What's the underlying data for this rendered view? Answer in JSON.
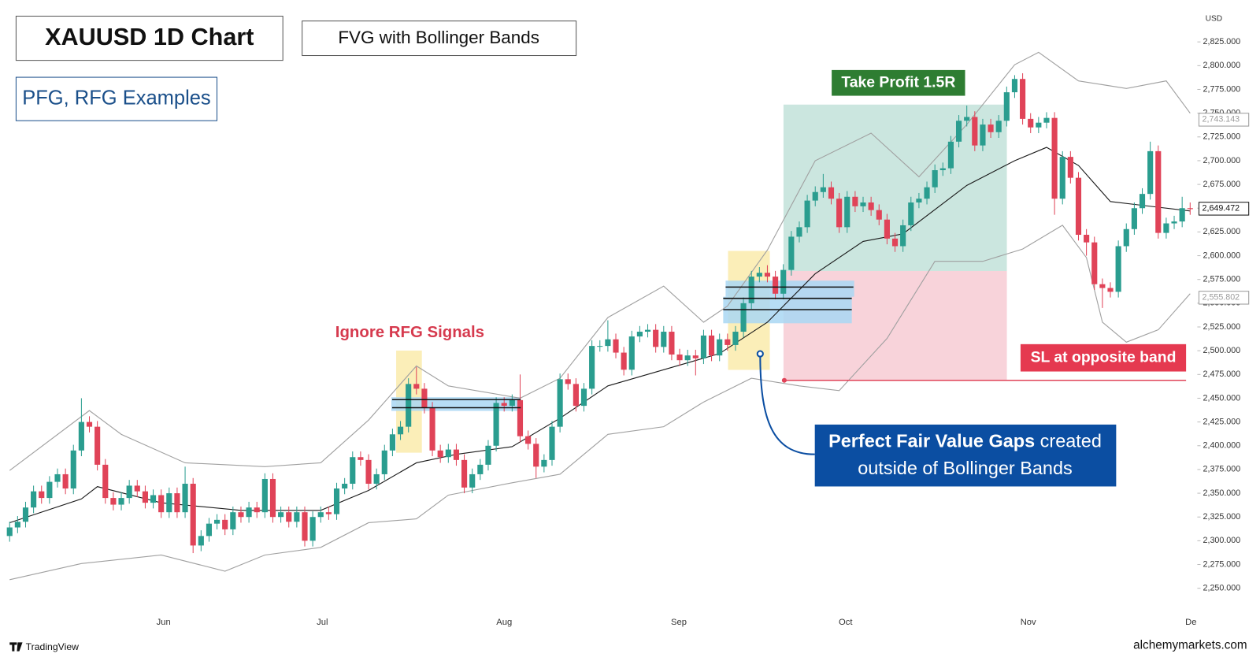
{
  "header": {
    "title": "XAUUSD 1D Chart",
    "subtitle": "FVG with Bollinger Bands",
    "tag": "PFG, RFG Examples"
  },
  "chart_data": {
    "type": "candlestick",
    "up_color": "#2a9d8f",
    "down_color": "#e04358",
    "open": [
      2305,
      2314,
      2320,
      2335,
      2352,
      2345,
      2362,
      2370,
      2355,
      2395,
      2425,
      2420,
      2380,
      2345,
      2338,
      2345,
      2358,
      2352,
      2340,
      2348,
      2330,
      2350,
      2330,
      2360,
      2295,
      2305,
      2318,
      2322,
      2312,
      2330,
      2325,
      2335,
      2330,
      2365,
      2325,
      2330,
      2320,
      2330,
      2300,
      2325,
      2330,
      2328,
      2355,
      2360,
      2388,
      2385,
      2360,
      2370,
      2395,
      2412,
      2420,
      2465,
      2460,
      2440,
      2395,
      2388,
      2396,
      2385,
      2356,
      2370,
      2380,
      2400,
      2445,
      2442,
      2448,
      2410,
      2402,
      2378,
      2385,
      2420,
      2470,
      2465,
      2442,
      2460,
      2505,
      2505,
      2512,
      2498,
      2480,
      2515,
      2520,
      2522,
      2504,
      2520,
      2496,
      2490,
      2495,
      2492,
      2516,
      2495,
      2512,
      2506,
      2520,
      2550,
      2578,
      2582,
      2578,
      2560,
      2585,
      2620,
      2630,
      2658,
      2667,
      2672,
      2660,
      2630,
      2662,
      2652,
      2656,
      2648,
      2638,
      2618,
      2610,
      2632,
      2656,
      2660,
      2672,
      2690,
      2692,
      2720,
      2742,
      2746,
      2716,
      2738,
      2730,
      2742,
      2772,
      2786,
      2744,
      2735,
      2740,
      2745,
      2660,
      2704,
      2682,
      2622,
      2614,
      2570,
      2566,
      2562,
      2610,
      2628,
      2650,
      2665,
      2710,
      2624,
      2634,
      2636,
      2650
    ],
    "high": [
      2320,
      2326,
      2341,
      2358,
      2358,
      2368,
      2376,
      2376,
      2401,
      2450,
      2431,
      2426,
      2386,
      2351,
      2351,
      2364,
      2364,
      2358,
      2354,
      2354,
      2356,
      2356,
      2378,
      2366,
      2311,
      2324,
      2328,
      2328,
      2336,
      2336,
      2341,
      2341,
      2371,
      2371,
      2336,
      2336,
      2336,
      2336,
      2331,
      2336,
      2336,
      2361,
      2366,
      2394,
      2394,
      2391,
      2376,
      2401,
      2418,
      2426,
      2471,
      2483,
      2466,
      2446,
      2401,
      2402,
      2402,
      2391,
      2376,
      2386,
      2406,
      2451,
      2451,
      2454,
      2475,
      2416,
      2408,
      2391,
      2426,
      2476,
      2476,
      2471,
      2466,
      2511,
      2511,
      2532,
      2518,
      2504,
      2521,
      2526,
      2528,
      2528,
      2526,
      2526,
      2502,
      2501,
      2501,
      2522,
      2522,
      2518,
      2518,
      2526,
      2556,
      2584,
      2588,
      2590,
      2584,
      2591,
      2626,
      2636,
      2664,
      2673,
      2686,
      2678,
      2666,
      2668,
      2668,
      2662,
      2662,
      2654,
      2644,
      2624,
      2638,
      2662,
      2666,
      2678,
      2696,
      2698,
      2726,
      2748,
      2758,
      2752,
      2744,
      2744,
      2748,
      2778,
      2790,
      2792,
      2750,
      2746,
      2751,
      2751,
      2710,
      2710,
      2688,
      2628,
      2620,
      2576,
      2572,
      2616,
      2634,
      2656,
      2671,
      2720,
      2716,
      2640,
      2642,
      2662,
      2656
    ],
    "low": [
      2299,
      2308,
      2314,
      2329,
      2339,
      2339,
      2356,
      2349,
      2349,
      2389,
      2414,
      2374,
      2339,
      2332,
      2332,
      2339,
      2346,
      2334,
      2334,
      2324,
      2324,
      2324,
      2324,
      2287,
      2289,
      2299,
      2312,
      2306,
      2306,
      2319,
      2319,
      2324,
      2324,
      2319,
      2319,
      2314,
      2314,
      2294,
      2294,
      2319,
      2322,
      2322,
      2349,
      2354,
      2379,
      2354,
      2354,
      2364,
      2389,
      2406,
      2414,
      2454,
      2434,
      2389,
      2382,
      2382,
      2379,
      2350,
      2350,
      2364,
      2374,
      2394,
      2436,
      2436,
      2404,
      2396,
      2366,
      2372,
      2379,
      2414,
      2459,
      2436,
      2436,
      2454,
      2499,
      2499,
      2492,
      2474,
      2474,
      2509,
      2514,
      2498,
      2498,
      2490,
      2484,
      2484,
      2474,
      2486,
      2489,
      2489,
      2500,
      2500,
      2514,
      2544,
      2572,
      2572,
      2554,
      2554,
      2579,
      2614,
      2624,
      2652,
      2661,
      2654,
      2624,
      2624,
      2646,
      2646,
      2642,
      2632,
      2612,
      2604,
      2604,
      2626,
      2650,
      2654,
      2666,
      2684,
      2686,
      2714,
      2736,
      2710,
      2710,
      2724,
      2724,
      2736,
      2766,
      2738,
      2729,
      2729,
      2734,
      2643,
      2654,
      2676,
      2616,
      2600,
      2564,
      2545,
      2556,
      2556,
      2604,
      2622,
      2644,
      2659,
      2618,
      2618,
      2628,
      2630,
      2643
    ],
    "close": [
      2314,
      2320,
      2335,
      2352,
      2345,
      2362,
      2370,
      2355,
      2395,
      2425,
      2420,
      2380,
      2345,
      2338,
      2345,
      2358,
      2352,
      2340,
      2348,
      2330,
      2350,
      2330,
      2360,
      2295,
      2305,
      2318,
      2322,
      2312,
      2330,
      2325,
      2335,
      2330,
      2365,
      2325,
      2330,
      2320,
      2330,
      2300,
      2325,
      2330,
      2328,
      2355,
      2360,
      2388,
      2385,
      2360,
      2370,
      2395,
      2412,
      2420,
      2465,
      2460,
      2440,
      2395,
      2388,
      2396,
      2385,
      2356,
      2370,
      2380,
      2400,
      2445,
      2442,
      2448,
      2410,
      2402,
      2378,
      2385,
      2420,
      2470,
      2465,
      2442,
      2460,
      2505,
      2505,
      2512,
      2498,
      2480,
      2515,
      2520,
      2522,
      2504,
      2520,
      2496,
      2490,
      2495,
      2492,
      2516,
      2495,
      2512,
      2506,
      2520,
      2550,
      2578,
      2582,
      2578,
      2560,
      2585,
      2620,
      2630,
      2658,
      2667,
      2672,
      2660,
      2630,
      2662,
      2652,
      2656,
      2648,
      2638,
      2618,
      2610,
      2632,
      2656,
      2660,
      2672,
      2690,
      2692,
      2720,
      2742,
      2746,
      2716,
      2738,
      2730,
      2742,
      2772,
      2786,
      2744,
      2735,
      2740,
      2745,
      2660,
      2704,
      2682,
      2622,
      2614,
      2570,
      2566,
      2562,
      2610,
      2628,
      2650,
      2665,
      2710,
      2624,
      2634,
      2636,
      2650,
      2649
    ],
    "bands": [
      {
        "color": "#a0a0a0",
        "x": [
          0,
          10,
          14,
          22,
          32,
          39,
          45,
          51,
          55,
          64,
          69,
          75,
          82,
          87,
          90,
          95,
          101,
          108,
          114,
          120,
          126,
          129,
          134,
          140,
          145,
          148
        ],
        "values": [
          2374,
          2437,
          2412,
          2382,
          2378,
          2382,
          2427,
          2484,
          2463,
          2450,
          2471,
          2535,
          2568,
          2530,
          2547,
          2606,
          2700,
          2729,
          2683,
          2738,
          2801,
          2814,
          2784,
          2776,
          2784,
          2750
        ]
      },
      {
        "color": "#1a1a1a",
        "x": [
          0,
          9,
          11,
          19,
          29,
          39,
          45,
          51,
          56,
          63,
          69,
          75,
          82,
          89,
          95,
          101,
          107,
          112,
          120,
          126,
          130,
          134,
          138,
          142,
          148
        ],
        "values": [
          2319,
          2344,
          2357,
          2340,
          2332,
          2332,
          2353,
          2382,
          2391,
          2399,
          2429,
          2463,
          2480,
          2497,
          2530,
          2581,
          2615,
          2623,
          2674,
          2700,
          2714,
          2695,
          2657,
          2653,
          2647
        ]
      },
      {
        "color": "#a0a0a0",
        "x": [
          0,
          9,
          19,
          27,
          32,
          39,
          45,
          51,
          55,
          63,
          69,
          75,
          82,
          87,
          93,
          99,
          104,
          110,
          116,
          122,
          127,
          132,
          135,
          137,
          140,
          144,
          148
        ],
        "values": [
          2259,
          2276,
          2285,
          2268,
          2285,
          2293,
          2319,
          2323,
          2348,
          2361,
          2370,
          2412,
          2420,
          2446,
          2471,
          2463,
          2458,
          2513,
          2594,
          2594,
          2607,
          2632,
          2598,
          2530,
          2509,
          2522,
          2560
        ]
      }
    ],
    "xlim": [
      -0.2,
      148.9
    ],
    "xticks": [
      {
        "value": 19.3,
        "label": "Jun"
      },
      {
        "value": 39.2,
        "label": "Jul"
      },
      {
        "value": 62,
        "label": "Aug"
      },
      {
        "value": 83.9,
        "label": "Sep"
      },
      {
        "value": 104.8,
        "label": "Oct"
      },
      {
        "value": 127.7,
        "label": "Nov"
      },
      {
        "value": 148.1,
        "label": "De"
      }
    ],
    "ylim": [
      2226,
      2869
    ],
    "y_axis_label": "USD",
    "yticks": [
      {
        "value": 2250,
        "label": "2,250.000"
      },
      {
        "value": 2275,
        "label": "2,275.000"
      },
      {
        "value": 2300,
        "label": "2,300.000"
      },
      {
        "value": 2325,
        "label": "2,325.000"
      },
      {
        "value": 2350,
        "label": "2,350.000"
      },
      {
        "value": 2375,
        "label": "2,375.000"
      },
      {
        "value": 2400,
        "label": "2,400.000"
      },
      {
        "value": 2425,
        "label": "2,425.000"
      },
      {
        "value": 2450,
        "label": "2,450.000"
      },
      {
        "value": 2475,
        "label": "2,475.000"
      },
      {
        "value": 2500,
        "label": "2,500.000"
      },
      {
        "value": 2525,
        "label": "2,525.000"
      },
      {
        "value": 2550,
        "label": "2,550.000"
      },
      {
        "value": 2575,
        "label": "2,575.000"
      },
      {
        "value": 2600,
        "label": "2,600.000"
      },
      {
        "value": 2625,
        "label": "2,625.000"
      },
      {
        "value": 2650,
        "label": "2,650.000"
      },
      {
        "value": 2675,
        "label": "2,675.000"
      },
      {
        "value": 2700,
        "label": "2,700.000"
      },
      {
        "value": 2725,
        "label": "2,725.000"
      },
      {
        "value": 2750,
        "label": "2,750.000"
      },
      {
        "value": 2775,
        "label": "2,775.000"
      },
      {
        "value": 2800,
        "label": "2,800.000"
      },
      {
        "value": 2825,
        "label": "2,825.000"
      }
    ],
    "price_tags": [
      {
        "value": 2743.143,
        "label": "2,743.143",
        "color": "#9a9a9a"
      },
      {
        "value": 2649.472,
        "label": "2,649.472",
        "color": "#111111"
      },
      {
        "value": 2555.802,
        "label": "2,555.802",
        "color": "#9a9a9a"
      }
    ],
    "annotations": {
      "ignore": "Ignore RFG Signals",
      "take_profit": "Take Profit 1.5R",
      "stop_loss": "SL at opposite band",
      "callout_bold": "Perfect Fair Value Gaps",
      "callout_rest": "created",
      "callout_line2": "outside of Bollinger Bands"
    }
  },
  "footer": {
    "brand": "TradingView",
    "source": "alchemymarkets.com"
  }
}
